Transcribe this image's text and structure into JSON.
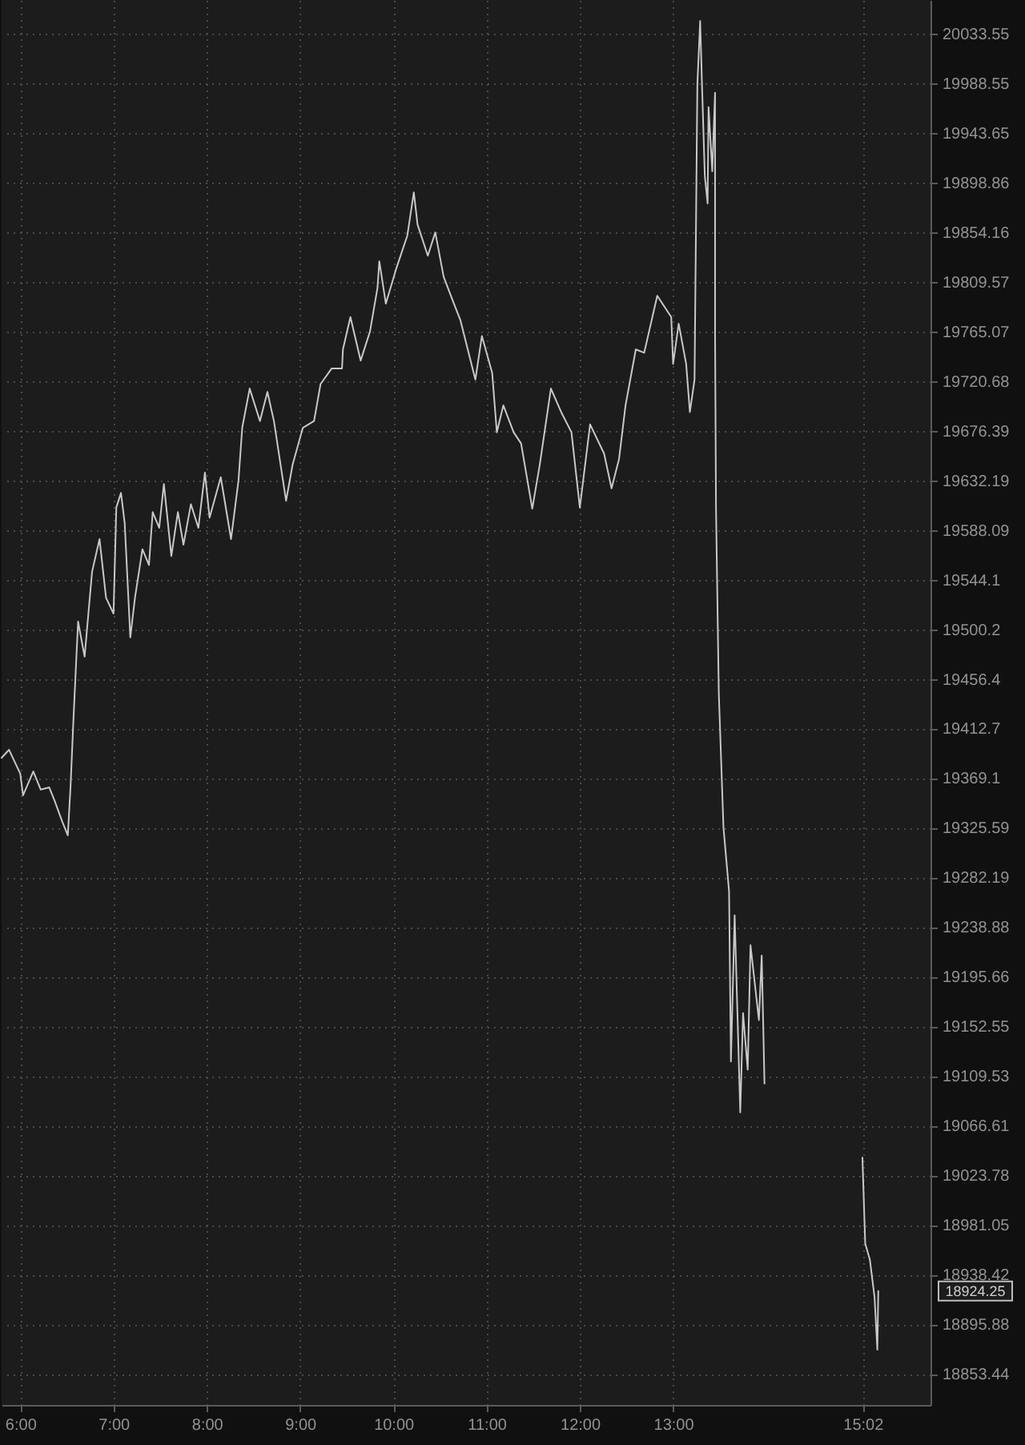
{
  "chart_data": {
    "type": "line",
    "x": [
      5.8,
      5.88,
      6.0,
      6.03,
      6.14,
      6.22,
      6.31,
      6.37,
      6.45,
      6.51,
      6.54,
      6.57,
      6.62,
      6.69,
      6.77,
      6.85,
      6.92,
      7.0,
      7.03,
      7.08,
      7.12,
      7.18,
      7.23,
      7.31,
      7.38,
      7.42,
      7.49,
      7.54,
      7.62,
      7.69,
      7.75,
      7.83,
      7.91,
      7.98,
      8.03,
      8.15,
      8.26,
      8.34,
      8.38,
      8.46,
      8.57,
      8.65,
      8.72,
      8.85,
      8.92,
      9.03,
      9.15,
      9.22,
      9.34,
      9.45,
      9.46,
      9.54,
      9.65,
      9.75,
      9.83,
      9.85,
      9.92,
      10.03,
      10.15,
      10.22,
      10.26,
      10.37,
      10.45,
      10.54,
      10.65,
      10.72,
      10.88,
      10.95,
      11.06,
      11.11,
      11.18,
      11.29,
      11.37,
      11.49,
      11.57,
      11.69,
      11.8,
      11.91,
      12.0,
      12.11,
      12.26,
      12.34,
      12.42,
      12.49,
      12.6,
      12.69,
      12.83,
      12.98,
      13.0,
      13.06,
      13.14,
      13.18,
      13.23,
      13.25,
      13.26,
      13.29,
      13.31,
      13.34,
      13.37,
      13.38,
      13.42,
      13.45,
      13.45,
      13.46,
      13.49,
      13.54,
      13.6,
      13.62,
      13.66,
      13.72,
      13.75,
      13.8,
      13.83,
      13.92,
      13.95,
      13.98,
      14.5,
      15.03,
      15.06,
      15.11,
      15.16,
      15.19,
      15.2
    ],
    "series": [
      {
        "color": "#c8c8c8",
        "values": [
          19387,
          19394,
          19373,
          19354,
          19375,
          19359,
          19361,
          19349,
          19331,
          19319,
          19363,
          19420,
          19507,
          19476,
          19551,
          19580,
          19528,
          19514,
          19608,
          19621,
          19594,
          19493,
          19528,
          19571,
          19557,
          19604,
          19590,
          19629,
          19565,
          19604,
          19575,
          19611,
          19590,
          19639,
          19599,
          19635,
          19580,
          19632,
          19679,
          19714,
          19685,
          19711,
          19685,
          19614,
          19646,
          19679,
          19685,
          19718,
          19732,
          19732,
          19749,
          19778,
          19739,
          19765,
          19804,
          19828,
          19790,
          19821,
          19851,
          19890,
          19861,
          19833,
          19854,
          19814,
          19790,
          19775,
          19722,
          19761,
          19728,
          19675,
          19699,
          19675,
          19665,
          19607,
          19646,
          19714,
          19693,
          19675,
          19608,
          19682,
          19656,
          19625,
          19651,
          19699,
          19749,
          19746,
          19797,
          19778,
          19736,
          19772,
          19736,
          19693,
          19722,
          19900,
          19987,
          20045,
          19987,
          19905,
          19880,
          19967,
          19909,
          19980,
          19765,
          19608,
          19444,
          19326,
          19270,
          19122,
          19249,
          19078,
          19164,
          19115,
          19223,
          19158,
          19214,
          19103,
          null,
          19039,
          18965,
          18951,
          18919,
          18874,
          18924.25
        ]
      }
    ],
    "xlim": [
      5.8,
      15.76
    ],
    "xticks": [
      {
        "value": 6,
        "label": "6:00"
      },
      {
        "value": 7,
        "label": "7:00"
      },
      {
        "value": 8,
        "label": "8:00"
      },
      {
        "value": 9,
        "label": "9:00"
      },
      {
        "value": 10,
        "label": "10:00"
      },
      {
        "value": 11,
        "label": "11:00"
      },
      {
        "value": 12,
        "label": "12:00"
      },
      {
        "value": 13,
        "label": "13:00"
      },
      {
        "value": 15.033,
        "label": "15:02"
      }
    ],
    "ylim": [
      18826.8,
      20064.1
    ],
    "yticks": [
      18853.44,
      18895.88,
      18938.42,
      18981.05,
      19023.78,
      19066.61,
      19109.53,
      19152.55,
      19195.66,
      19238.88,
      19282.19,
      19325.59,
      19369.1,
      19412.7,
      19456.4,
      19500.2,
      19544.1,
      19588.09,
      19632.19,
      19676.39,
      19720.68,
      19765.07,
      19809.57,
      19854.16,
      19898.86,
      19943.65,
      19988.55,
      20033.55
    ],
    "log": true,
    "grid": true,
    "line_style": "solid",
    "annotations": [
      "18924.25"
    ]
  }
}
